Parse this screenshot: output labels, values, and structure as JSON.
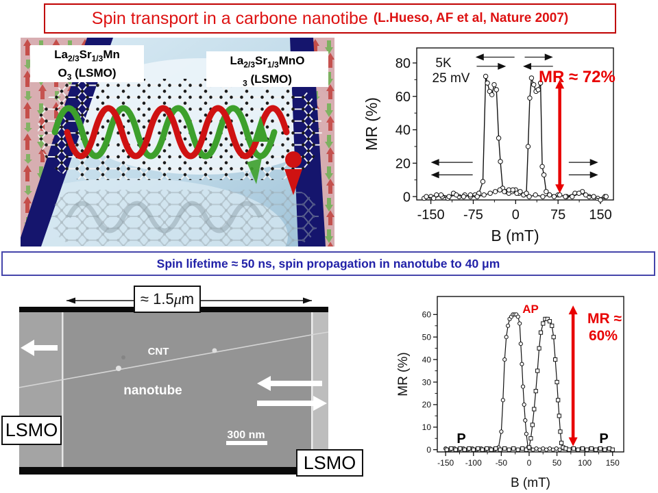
{
  "slide": {
    "title_main": "Spin transport in a carbone nanotibe",
    "title_cite": "(L.Hueso, AF et al, Nature 2007)",
    "banner_text": "Spin lifetime ≈ 50 ns, spin propagation in nanotube to  40 μm"
  },
  "colors": {
    "title_red": "#dd1111",
    "annotation_red": "#e80000",
    "banner_blue": "#2222a8",
    "electrode_navy": "#15156d",
    "lsmo_pink": "#d8abae"
  },
  "device_figure": {
    "electrode_left": {
      "a": "La",
      "b": "2/3",
      "c": "Sr",
      "d": "1/3",
      "e": "Mn",
      "f": "O",
      "g": "3",
      "h": "(LSMO)"
    },
    "electrode_right": {
      "a": "La",
      "b": "2/3",
      "c": "Sr",
      "d": "1/3",
      "e": "MnO",
      "f": "3",
      "g": "(LSMO)"
    }
  },
  "sem_figure": {
    "width_label_pre": "≈ 1.5",
    "width_label_mu": "μ",
    "width_label_unit": "m",
    "cnt_label": "CNT",
    "nanotube_label": "nanotube",
    "scale_label": "300 nm",
    "lsmo_left": "LSMO",
    "lsmo_right": "LSMO"
  },
  "chart_data": [
    {
      "id": "mr-vs-field-5K",
      "type": "line",
      "xlabel": "B (mT)",
      "ylabel": "MR (%)",
      "xlim": [
        -175,
        173
      ],
      "ylim": [
        -2,
        89
      ],
      "xticks": [
        -150,
        -75,
        0,
        75,
        150
      ],
      "yticks": [
        0,
        20,
        40,
        60,
        80
      ],
      "grid": false,
      "legend": "none",
      "annotations": {
        "temperature": "5K",
        "bias": "25 mV",
        "mr_value": "MR ≈ 72%"
      },
      "mr_arrow": {
        "x": 78,
        "y1": 2,
        "y2": 70
      },
      "sweep_arrows": [
        {
          "tail": -2,
          "head": -71,
          "y": 83.5
        },
        {
          "tail": 16,
          "head": 66,
          "y": 83.5
        },
        {
          "tail": -69,
          "head": -17,
          "y": 78
        },
        {
          "tail": 66,
          "head": 13,
          "y": 78
        },
        {
          "tail": -76,
          "head": -150,
          "y": 20.5
        },
        {
          "tail": -76,
          "head": -150,
          "y": 13
        },
        {
          "tail": 94,
          "head": 146,
          "y": 20.5
        },
        {
          "tail": 94,
          "head": 146,
          "y": 13
        }
      ],
      "series": [
        {
          "name": "sweep toward negative field",
          "marker": "circle",
          "x": [
            -162,
            -150,
            -140,
            -130,
            -120,
            -110,
            -100,
            -90,
            -80,
            -72,
            -65,
            -58,
            -53,
            -50,
            -46,
            -42,
            -38,
            -34,
            -30,
            -27,
            -23,
            -18,
            -12,
            -6,
            0,
            6,
            14,
            24,
            35,
            48,
            60,
            75,
            90,
            105,
            118,
            130,
            145,
            158
          ],
          "y": [
            -1,
            0,
            1,
            0,
            -1,
            2,
            0,
            1,
            0,
            1,
            2,
            9,
            72,
            68,
            63,
            61,
            67,
            64,
            35,
            21,
            5,
            3,
            2,
            3,
            4,
            2,
            1,
            0,
            1,
            0,
            1,
            1,
            0,
            2,
            3,
            0,
            -1,
            0
          ]
        },
        {
          "name": "sweep toward positive field",
          "marker": "circle",
          "x": [
            -158,
            -145,
            -132,
            -118,
            -105,
            -92,
            -80,
            -68,
            -56,
            -45,
            -36,
            -28,
            -20,
            -12,
            -5,
            2,
            8,
            14,
            19,
            22,
            25,
            28,
            32,
            36,
            40,
            44,
            47,
            50,
            54,
            60,
            68,
            78,
            88,
            100,
            112,
            124,
            138,
            150,
            160
          ],
          "y": [
            0,
            -1,
            1,
            0,
            1,
            0,
            1,
            0,
            1,
            2,
            3,
            4,
            3,
            4,
            4,
            2,
            3,
            1,
            2,
            30,
            59,
            71,
            67,
            63,
            64,
            68,
            18,
            13,
            3,
            1,
            0,
            1,
            0,
            0,
            2,
            1,
            0,
            -2,
            0
          ]
        }
      ]
    },
    {
      "id": "mr-vs-field-hysteresis",
      "type": "line",
      "xlabel": "B (mT)",
      "ylabel": "MR (%)",
      "xlim": [
        -165,
        170
      ],
      "ylim": [
        -1,
        68
      ],
      "xticks": [
        -150,
        -100,
        -50,
        0,
        50,
        100,
        150
      ],
      "yticks": [
        0,
        10,
        20,
        30,
        40,
        50,
        60
      ],
      "grid": false,
      "legend": "none",
      "annotations": {
        "ap": "AP",
        "p_left": "P",
        "p_right": "P",
        "mr_value_line1": "MR ≈",
        "mr_value_line2": "60%"
      },
      "mr_arrow": {
        "x": 79,
        "y1": 1.5,
        "y2": 64
      },
      "sweep_arrows": [],
      "series": [
        {
          "name": "AP peak negative branch",
          "marker": "circle",
          "x": [
            -150,
            -142,
            -134,
            -126,
            -118,
            -110,
            -102,
            -94,
            -86,
            -78,
            -70,
            -62,
            -55,
            -50,
            -47,
            -44,
            -41,
            -38,
            -35,
            -32,
            -29,
            -26,
            -23,
            -20,
            -17,
            -15,
            -13,
            -11,
            -9,
            -7,
            -5,
            -2,
            2,
            7,
            13,
            19,
            25,
            31,
            37,
            43,
            49,
            55,
            62,
            70,
            78,
            86,
            94,
            102,
            110,
            118,
            126,
            134,
            142,
            148
          ],
          "y": [
            0.5,
            0,
            0.5,
            0,
            0.5,
            0,
            0.5,
            0,
            0.5,
            0,
            0.5,
            0,
            1,
            8,
            22,
            40,
            50,
            55,
            58,
            59,
            60,
            60,
            60,
            59,
            56,
            47,
            38,
            28,
            20,
            13,
            7,
            1,
            0.5,
            0,
            0.5,
            0,
            0.5,
            0,
            0.5,
            0,
            0.5,
            0,
            0.5,
            0,
            0.5,
            0,
            0.5,
            0,
            0.5,
            0,
            0.5,
            0,
            0.5,
            0
          ]
        },
        {
          "name": "AP peak positive branch",
          "marker": "square",
          "x": [
            -148,
            -140,
            -132,
            -124,
            -116,
            -108,
            -100,
            -92,
            -84,
            -76,
            -68,
            -60,
            -52,
            -44,
            -36,
            -28,
            -20,
            -12,
            -5,
            0,
            3,
            6,
            9,
            12,
            15,
            18,
            21,
            25,
            29,
            33,
            37,
            41,
            44,
            47,
            50,
            52,
            54,
            56,
            58,
            61,
            66,
            72,
            80,
            88,
            96,
            104,
            112,
            120,
            128,
            136,
            144,
            150
          ],
          "y": [
            0,
            0.5,
            0,
            0.5,
            0,
            0.5,
            0,
            0.5,
            0,
            0.5,
            0,
            0.5,
            0,
            0.5,
            0,
            0.5,
            0,
            0.5,
            0,
            1,
            5,
            11,
            18,
            26,
            35,
            45,
            52,
            56,
            58,
            58,
            57,
            55,
            50,
            40,
            30,
            22,
            15,
            8,
            3,
            1,
            0.5,
            0,
            0.5,
            0,
            0.5,
            0,
            0.5,
            0,
            0.5,
            0,
            0.5,
            0
          ]
        }
      ]
    }
  ]
}
